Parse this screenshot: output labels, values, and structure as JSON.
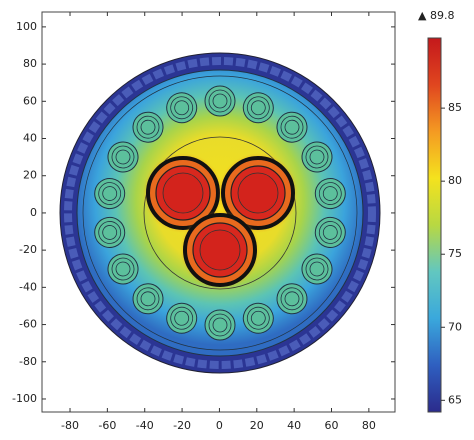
{
  "chart_data": {
    "type": "heatmap",
    "xlim": [
      -95,
      94
    ],
    "ylim": [
      -107,
      108
    ],
    "xticks": [
      -80,
      -60,
      -40,
      -20,
      0,
      20,
      40,
      60,
      80
    ],
    "yticks": [
      -100,
      -80,
      -60,
      -40,
      -20,
      0,
      20,
      40,
      60,
      80,
      100
    ],
    "colorbar": {
      "lim": [
        64.2,
        89.8
      ],
      "ticks": [
        65,
        70,
        75,
        80,
        85
      ],
      "colormap": [
        "#2b2b8c",
        "#2f5fc0",
        "#3aa8dc",
        "#62c7c0",
        "#b8d842",
        "#f4e21e",
        "#f49a22",
        "#e0461f",
        "#c4181c"
      ]
    }
  }
}
